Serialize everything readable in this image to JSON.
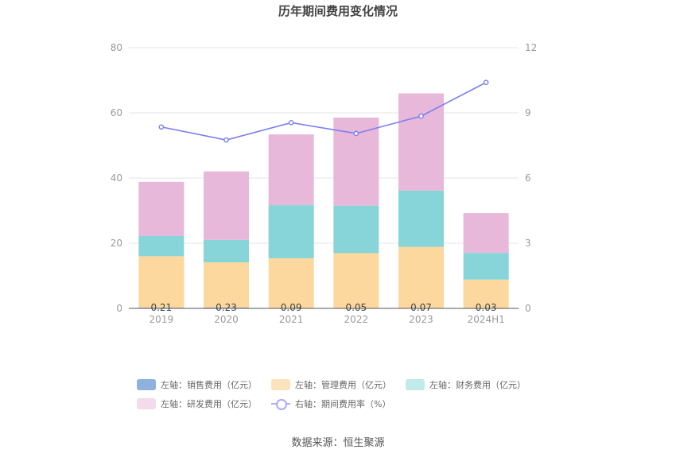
{
  "chart_data": {
    "type": "bar",
    "title": "历年期间费用变化情况",
    "categories": [
      "2019",
      "2020",
      "2021",
      "2022",
      "2023",
      "2024H1"
    ],
    "stacked": true,
    "y_left": {
      "min": 0,
      "max": 80,
      "ticks": [
        0,
        20,
        40,
        60,
        80
      ]
    },
    "y_right": {
      "min": 0,
      "max": 12,
      "ticks": [
        0,
        3,
        6,
        9,
        12
      ]
    },
    "series": [
      {
        "name": "左轴：销售费用（亿元）",
        "type": "bar",
        "axis": "left",
        "color": "#8eb1dd",
        "values": [
          0.21,
          0.23,
          0.09,
          0.05,
          0.07,
          0.03
        ]
      },
      {
        "name": "左轴：管理费用（亿元）",
        "type": "bar",
        "axis": "left",
        "color": "#fcd89e",
        "values": [
          15.8,
          13.9,
          15.3,
          16.9,
          18.8,
          8.8
        ]
      },
      {
        "name": "左轴：财务费用（亿元）",
        "type": "bar",
        "axis": "left",
        "color": "#87d4d9",
        "values": [
          6.2,
          6.9,
          16.3,
          14.6,
          17.3,
          8.2
        ]
      },
      {
        "name": "左轴：研发费用（亿元）",
        "type": "bar",
        "axis": "left",
        "color": "#e7b8d9",
        "values": [
          16.6,
          21.0,
          21.7,
          27.0,
          29.8,
          12.2
        ]
      },
      {
        "name": "右轴：期间费用率（%）",
        "type": "line",
        "axis": "right",
        "color": "#7b7ef0",
        "values": [
          8.35,
          7.75,
          8.55,
          8.05,
          8.85,
          10.4
        ]
      }
    ],
    "bar_labels": [
      "0.21",
      "0.23",
      "0.09",
      "0.05",
      "0.07",
      "0.03"
    ],
    "legend_position": "bottom",
    "grid": true
  },
  "legend": {
    "items": [
      {
        "label": "左轴：销售费用（亿元）",
        "color": "#8eb1dd",
        "kind": "bar"
      },
      {
        "label": "左轴：管理费用（亿元）",
        "color": "#fde3bd",
        "kind": "bar"
      },
      {
        "label": "左轴：财务费用（亿元）",
        "color": "#c1eaeb",
        "kind": "bar"
      },
      {
        "label": "左轴：研发费用（亿元）",
        "color": "#f4dbec",
        "kind": "bar"
      },
      {
        "label": "右轴：期间费用率（%）",
        "color": "#a9abf5",
        "kind": "line"
      }
    ]
  },
  "source": "数据来源：恒生聚源"
}
